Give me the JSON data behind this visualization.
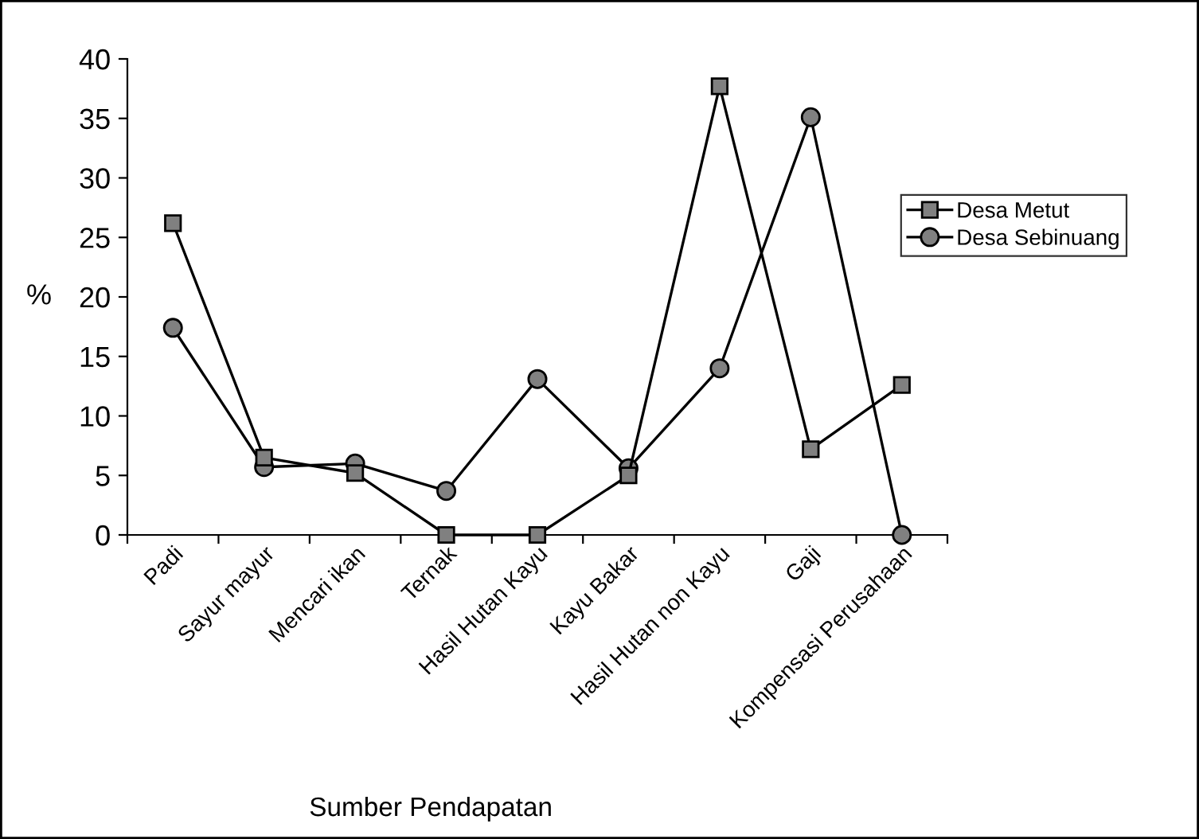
{
  "chart_data": {
    "type": "line",
    "xlabel": "Sumber Pendapatan",
    "ylabel": "%",
    "categories": [
      "Padi",
      "Sayur mayur",
      "Mencari ikan",
      "Ternak",
      "Hasil Hutan Kayu",
      "Kayu Bakar",
      "Hasil Hutan non Kayu",
      "Gaji",
      "Kompensasi Perusahaan"
    ],
    "series": [
      {
        "name": "Desa Metut",
        "color": "#808080",
        "marker": "square",
        "values": [
          26.2,
          6.5,
          5.2,
          0,
          0,
          5.0,
          37.7,
          7.2,
          12.6
        ]
      },
      {
        "name": "Desa Sebinuang",
        "color": "#808080",
        "marker": "circle",
        "values": [
          17.4,
          5.7,
          6.0,
          3.7,
          13.1,
          5.6,
          14.0,
          35.1,
          0
        ]
      }
    ],
    "ylim": [
      0,
      40
    ],
    "yticks": [
      0,
      5,
      10,
      15,
      20,
      25,
      30,
      35,
      40
    ],
    "grid": false,
    "legend": "right",
    "line_style": "solid"
  }
}
